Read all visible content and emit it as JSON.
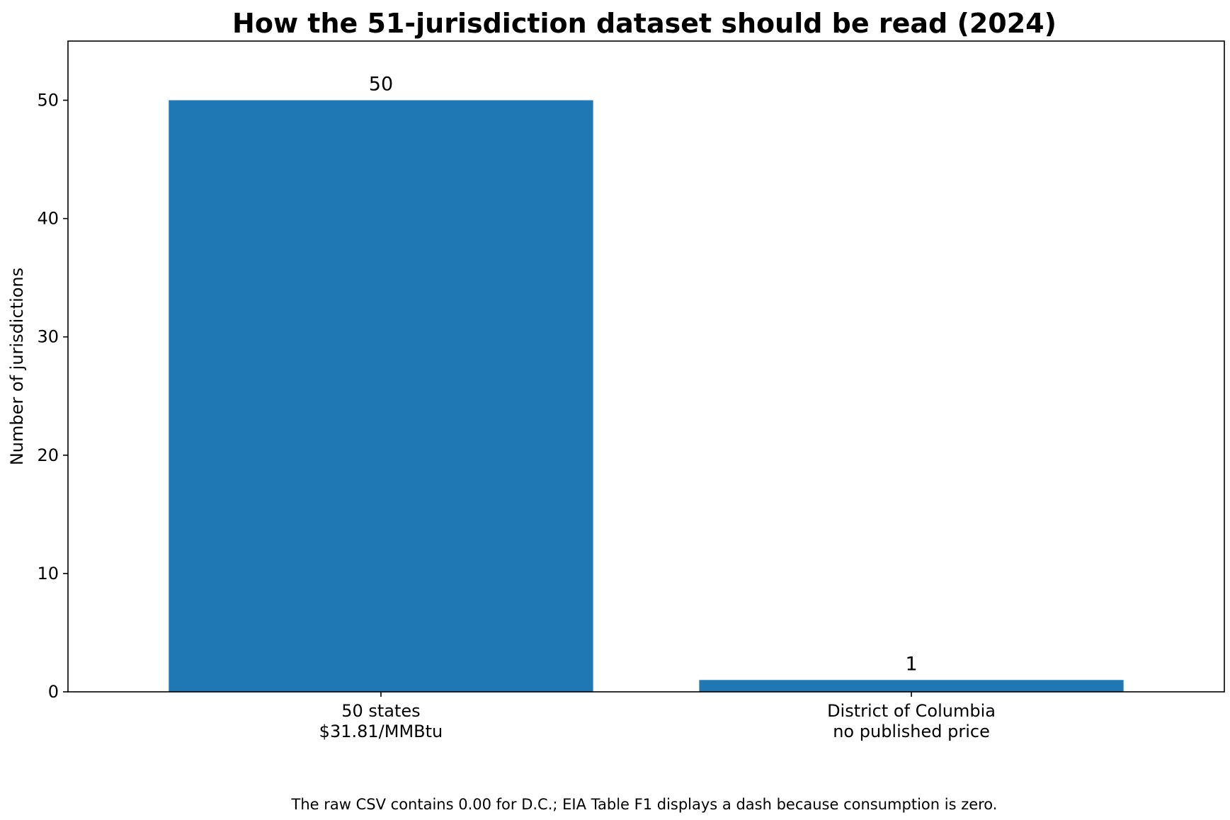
{
  "chart_data": {
    "type": "bar",
    "title": "How the 51-jurisdiction dataset should be read (2024)",
    "xlabel": "",
    "ylabel": "Number of jurisdictions",
    "categories": [
      [
        "50 states",
        "$31.81/MMBtu"
      ],
      [
        "District of Columbia",
        "no published price"
      ]
    ],
    "values": [
      50,
      1
    ],
    "data_labels": [
      "50",
      "1"
    ],
    "ylim": [
      0,
      55
    ],
    "yticks": [
      0,
      10,
      20,
      30,
      40,
      50
    ],
    "bar_color": "#1f77b4",
    "grid": false,
    "legend": "none",
    "footnote": "The raw CSV contains 0.00 for D.C.; EIA Table F1 displays a dash because consumption is zero."
  }
}
